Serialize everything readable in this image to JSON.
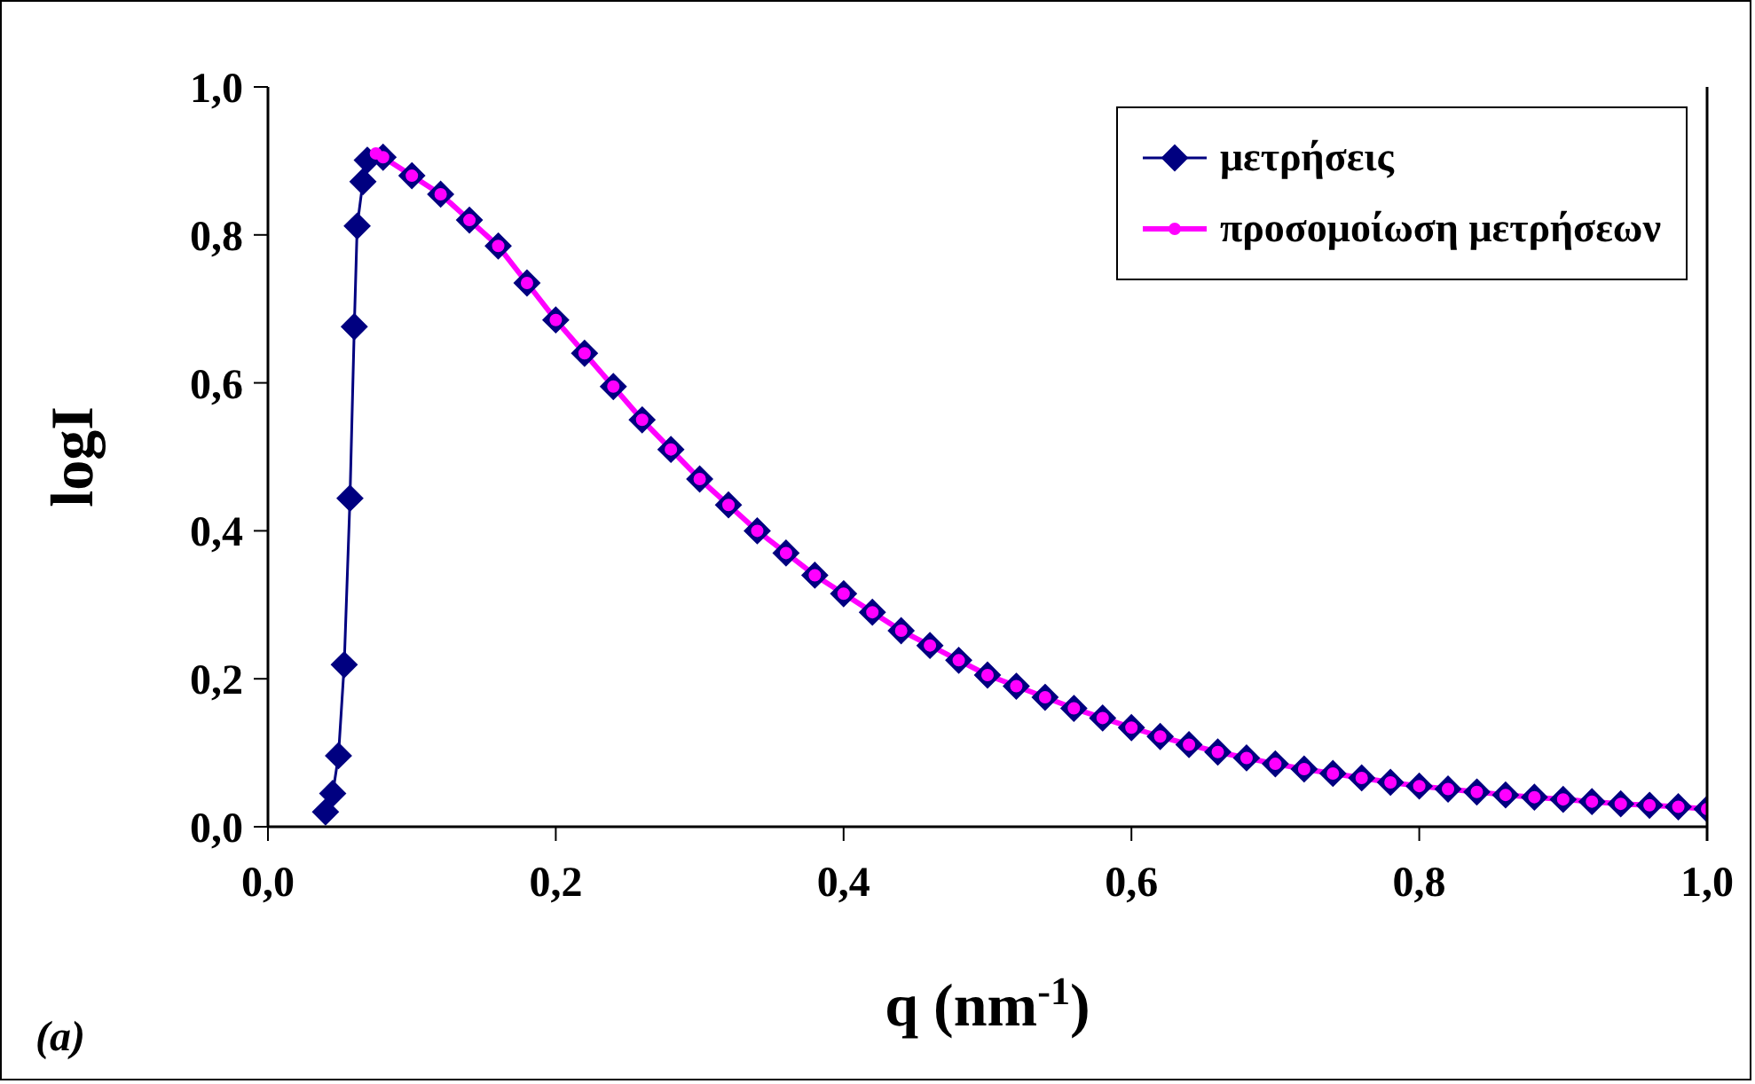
{
  "chart_data": {
    "type": "line",
    "xlabel": "q (nm$^{-1}$)",
    "ylabel": "logI",
    "xlim": [
      0,
      1
    ],
    "xticks": [
      {
        "value": 0,
        "label": "0,0"
      },
      {
        "value": 0.2,
        "label": "0,2"
      },
      {
        "value": 0.4,
        "label": "0,4"
      },
      {
        "value": 0.6,
        "label": "0,6"
      },
      {
        "value": 0.8,
        "label": "0,8"
      },
      {
        "value": 1,
        "label": "1,0"
      }
    ],
    "ylim": [
      0,
      1
    ],
    "yticks": [
      {
        "value": 0,
        "label": "0,0"
      },
      {
        "value": 0.2,
        "label": "0,2"
      },
      {
        "value": 0.4,
        "label": "0,4"
      },
      {
        "value": 0.6,
        "label": "0,6"
      },
      {
        "value": 0.8,
        "label": "0,8"
      },
      {
        "value": 1,
        "label": "1,0"
      }
    ],
    "grid": false,
    "legend": "top right",
    "annotations": [
      "(a)"
    ],
    "series": [
      {
        "name": "μετρήσεις",
        "color": "#000080",
        "marker": "diamond",
        "x": [
          0.04,
          0.045,
          0.049,
          0.053,
          0.057,
          0.06,
          0.062,
          0.066,
          0.069,
          0.08,
          0.1,
          0.12,
          0.14,
          0.16,
          0.18,
          0.2,
          0.22,
          0.24,
          0.26,
          0.28,
          0.3,
          0.32,
          0.34,
          0.36,
          0.38,
          0.4,
          0.42,
          0.44,
          0.46,
          0.48,
          0.5,
          0.52,
          0.54,
          0.56,
          0.58,
          0.6,
          0.62,
          0.64,
          0.66,
          0.68,
          0.7,
          0.72,
          0.74,
          0.76,
          0.78,
          0.8,
          0.82,
          0.84,
          0.86,
          0.88,
          0.9,
          0.92,
          0.94,
          0.96,
          0.98,
          1.0
        ],
        "values": [
          0.02,
          0.045,
          0.096,
          0.219,
          0.444,
          0.676,
          0.812,
          0.872,
          0.901,
          0.905,
          0.88,
          0.855,
          0.82,
          0.785,
          0.735,
          0.685,
          0.64,
          0.595,
          0.55,
          0.51,
          0.47,
          0.435,
          0.4,
          0.37,
          0.34,
          0.315,
          0.29,
          0.265,
          0.245,
          0.225,
          0.205,
          0.19,
          0.175,
          0.16,
          0.147,
          0.134,
          0.122,
          0.111,
          0.101,
          0.093,
          0.085,
          0.078,
          0.072,
          0.066,
          0.06,
          0.055,
          0.051,
          0.047,
          0.043,
          0.04,
          0.037,
          0.034,
          0.031,
          0.029,
          0.027,
          0.024
        ]
      },
      {
        "name": "προσομοίωση μετρήσεων",
        "color": "#ff00ff",
        "marker": "circle",
        "x": [
          0.075,
          0.08,
          0.1,
          0.12,
          0.14,
          0.16,
          0.18,
          0.2,
          0.22,
          0.24,
          0.26,
          0.28,
          0.3,
          0.32,
          0.34,
          0.36,
          0.38,
          0.4,
          0.42,
          0.44,
          0.46,
          0.48,
          0.5,
          0.52,
          0.54,
          0.56,
          0.58,
          0.6,
          0.62,
          0.64,
          0.66,
          0.68,
          0.7,
          0.72,
          0.74,
          0.76,
          0.78,
          0.8,
          0.82,
          0.84,
          0.86,
          0.88,
          0.9,
          0.92,
          0.94,
          0.96,
          0.98,
          1.0
        ],
        "values": [
          0.91,
          0.905,
          0.88,
          0.855,
          0.82,
          0.785,
          0.735,
          0.685,
          0.64,
          0.595,
          0.55,
          0.51,
          0.47,
          0.435,
          0.4,
          0.37,
          0.34,
          0.315,
          0.29,
          0.265,
          0.245,
          0.225,
          0.205,
          0.19,
          0.175,
          0.16,
          0.147,
          0.134,
          0.122,
          0.111,
          0.101,
          0.093,
          0.085,
          0.078,
          0.072,
          0.066,
          0.06,
          0.055,
          0.051,
          0.047,
          0.043,
          0.04,
          0.037,
          0.034,
          0.031,
          0.029,
          0.027,
          0.024
        ]
      }
    ]
  }
}
